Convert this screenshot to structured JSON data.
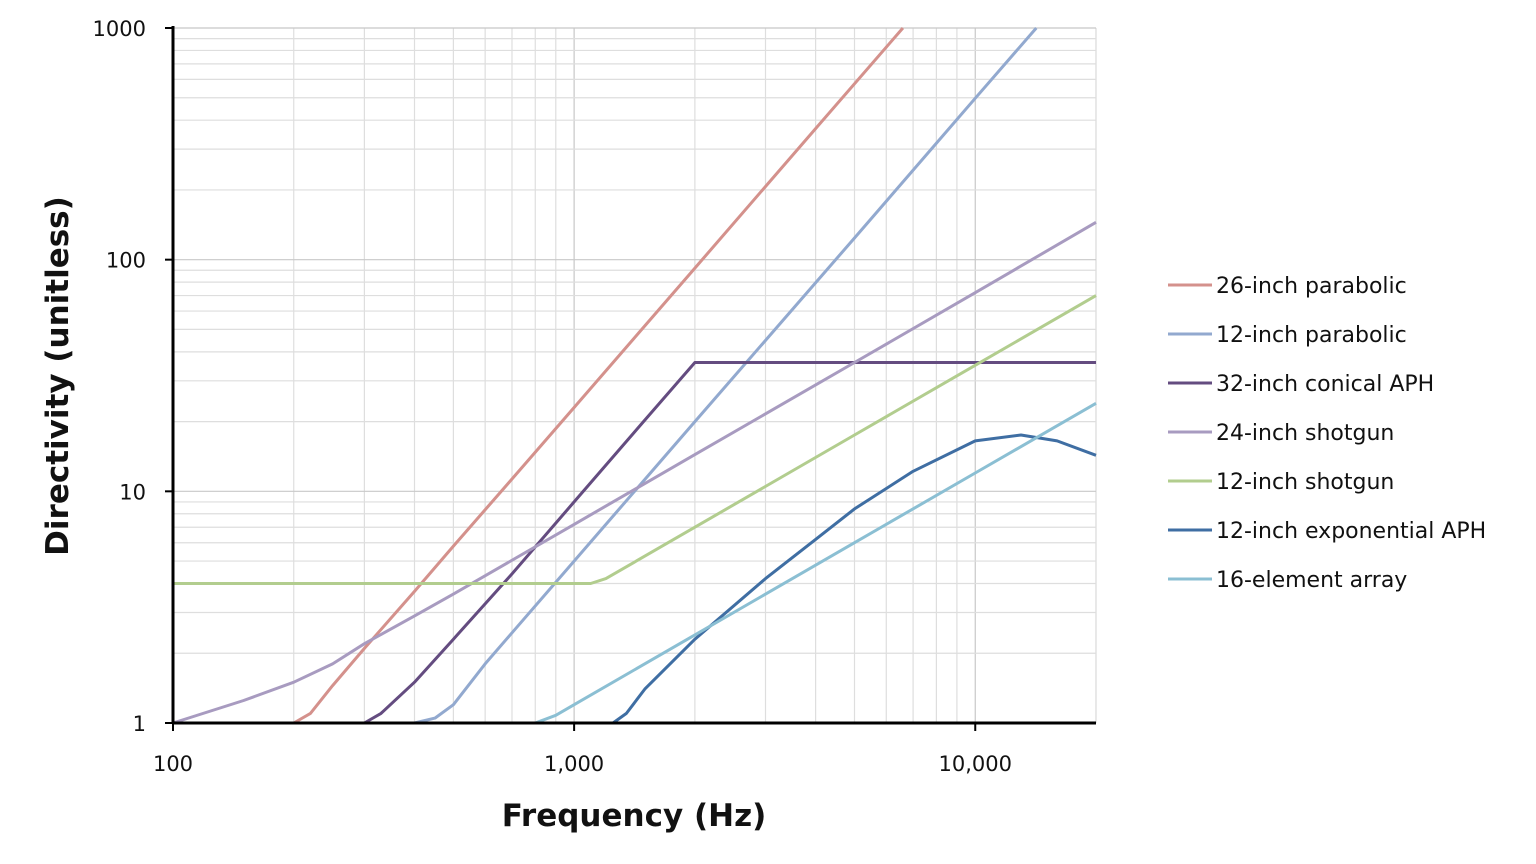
{
  "chart_data": {
    "type": "line",
    "title": "",
    "xlabel": "Frequency (Hz)",
    "ylabel": "Directivity (unitless)",
    "x_scale": "log",
    "y_scale": "log",
    "xlim": [
      100,
      20000
    ],
    "ylim": [
      1,
      1000
    ],
    "x_ticks": [
      {
        "value": 100,
        "label": "100"
      },
      {
        "value": 1000,
        "label": "1,000"
      },
      {
        "value": 10000,
        "label": "10,000"
      }
    ],
    "y_ticks": [
      {
        "value": 1,
        "label": "1"
      },
      {
        "value": 10,
        "label": "10"
      },
      {
        "value": 100,
        "label": "100"
      },
      {
        "value": 1000,
        "label": "1000"
      }
    ],
    "grid": "major and minor",
    "legend_position": "right",
    "series": [
      {
        "name": "26-inch parabolic",
        "color": "#d4918c",
        "points": [
          [
            100,
            1
          ],
          [
            200,
            1
          ],
          [
            220,
            1.1
          ],
          [
            250,
            1.45
          ],
          [
            300,
            2.1
          ],
          [
            400,
            3.7
          ],
          [
            500,
            5.8
          ],
          [
            700,
            11.3
          ],
          [
            1000,
            23
          ],
          [
            2000,
            92
          ],
          [
            4000,
            368
          ],
          [
            6600,
            1000
          ]
        ]
      },
      {
        "name": "12-inch parabolic",
        "color": "#92a9cf",
        "points": [
          [
            100,
            1
          ],
          [
            400,
            1
          ],
          [
            450,
            1.05
          ],
          [
            500,
            1.2
          ],
          [
            600,
            1.8
          ],
          [
            700,
            2.45
          ],
          [
            1000,
            5
          ],
          [
            2000,
            20
          ],
          [
            5000,
            124
          ],
          [
            10000,
            497
          ],
          [
            14200,
            1000
          ]
        ]
      },
      {
        "name": "32-inch conical APH",
        "color": "#644c80",
        "points": [
          [
            100,
            1
          ],
          [
            300,
            1
          ],
          [
            330,
            1.1
          ],
          [
            400,
            1.5
          ],
          [
            500,
            2.3
          ],
          [
            700,
            4.4
          ],
          [
            1000,
            9
          ],
          [
            1500,
            20.3
          ],
          [
            2000,
            36
          ],
          [
            20000,
            36
          ]
        ]
      },
      {
        "name": "24-inch shotgun",
        "color": "#a89bc0",
        "points": [
          [
            100,
            1
          ],
          [
            150,
            1.25
          ],
          [
            200,
            1.5
          ],
          [
            250,
            1.8
          ],
          [
            300,
            2.2
          ],
          [
            400,
            2.9
          ],
          [
            500,
            3.6
          ],
          [
            1000,
            7.2
          ],
          [
            2000,
            14.4
          ],
          [
            5000,
            36
          ],
          [
            10000,
            72
          ],
          [
            20000,
            145
          ]
        ]
      },
      {
        "name": "12-inch shotgun",
        "color": "#b2cd8e",
        "points": [
          [
            100,
            4
          ],
          [
            1100,
            4
          ],
          [
            1200,
            4.2
          ],
          [
            2000,
            7
          ],
          [
            5000,
            17.5
          ],
          [
            10000,
            35
          ],
          [
            20000,
            70
          ]
        ]
      },
      {
        "name": "12-inch exponential APH",
        "color": "#3f6ea3",
        "points": [
          [
            100,
            1
          ],
          [
            1250,
            1
          ],
          [
            1350,
            1.1
          ],
          [
            1500,
            1.4
          ],
          [
            2000,
            2.3
          ],
          [
            3000,
            4.2
          ],
          [
            4000,
            6.2
          ],
          [
            5000,
            8.4
          ],
          [
            7000,
            12.2
          ],
          [
            10000,
            16.5
          ],
          [
            13000,
            17.5
          ],
          [
            16000,
            16.5
          ],
          [
            20000,
            14.3
          ]
        ]
      },
      {
        "name": "16-element array",
        "color": "#8bbfd3",
        "points": [
          [
            100,
            1
          ],
          [
            800,
            1
          ],
          [
            900,
            1.08
          ],
          [
            1000,
            1.2
          ],
          [
            2000,
            2.4
          ],
          [
            5000,
            6
          ],
          [
            10000,
            12
          ],
          [
            20000,
            24
          ]
        ]
      }
    ]
  }
}
